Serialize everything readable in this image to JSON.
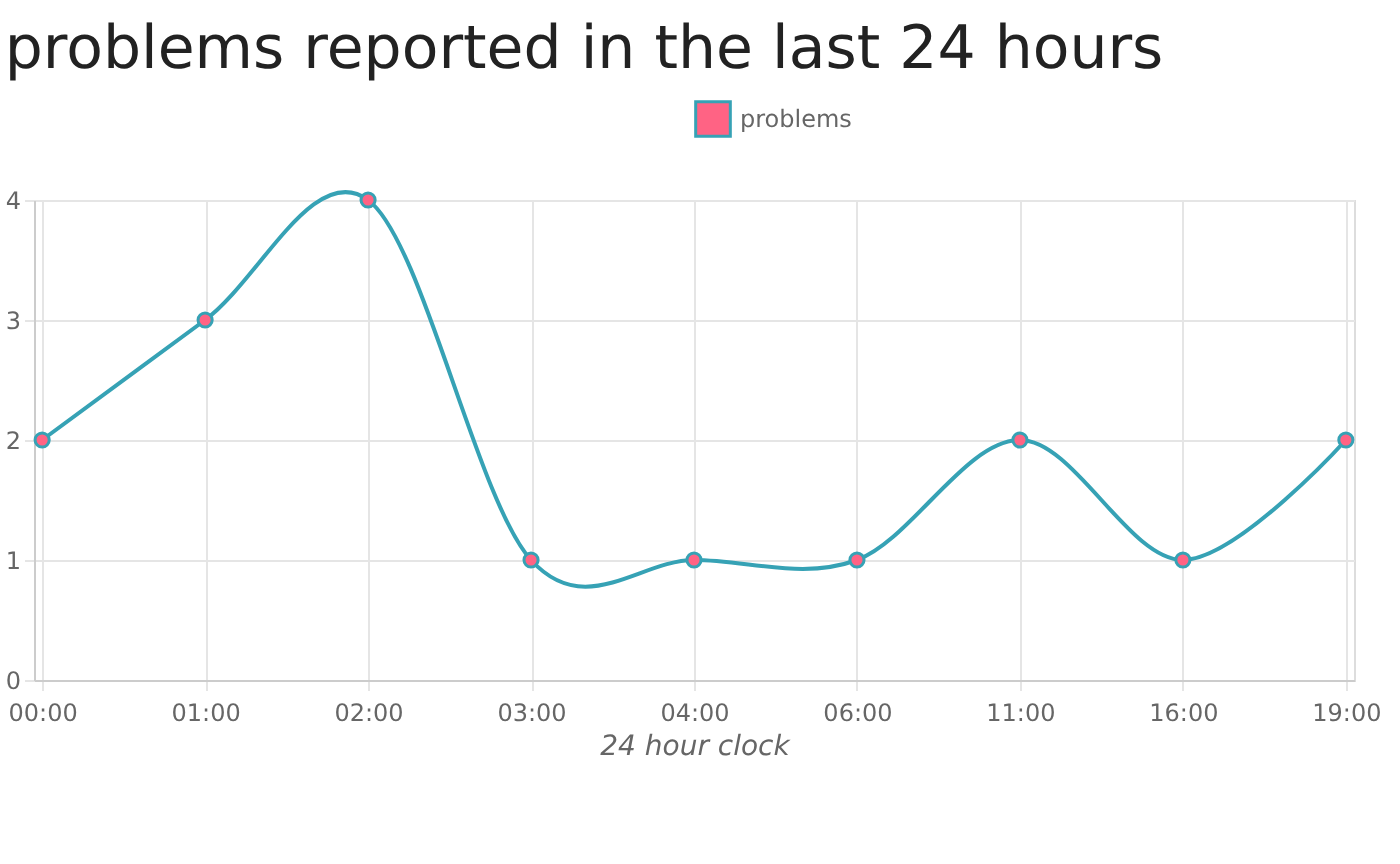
{
  "chart_data": {
    "type": "line",
    "title": "problems reported in the last 24 hours",
    "xlabel": "24 hour clock",
    "categories": [
      "00:00",
      "01:00",
      "02:00",
      "03:00",
      "04:00",
      "06:00",
      "11:00",
      "16:00",
      "19:00"
    ],
    "series": [
      {
        "name": "problems",
        "color": "#36a2b5",
        "values": [
          2,
          3,
          4,
          1,
          1,
          1,
          2,
          1,
          2
        ]
      }
    ],
    "ylim": [
      0,
      4
    ],
    "yticks": [
      0,
      1,
      2,
      3,
      4
    ],
    "grid": true,
    "legend": "top",
    "marker": "circle",
    "line_style": "solid"
  }
}
